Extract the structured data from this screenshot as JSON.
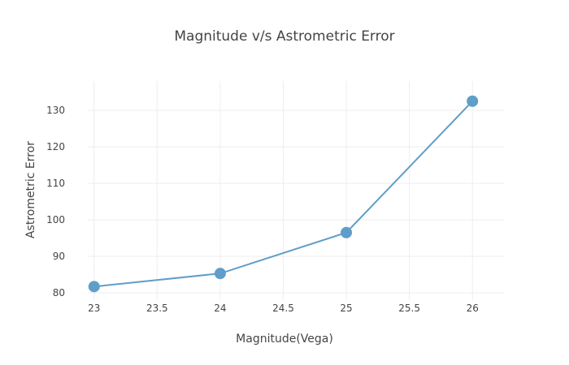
{
  "chart_data": {
    "type": "line",
    "title": "Magnitude v/s Astrometric Error",
    "xlabel": "Magnitude(Vega)",
    "ylabel": "Astrometric Error",
    "xlim": [
      22.95,
      26.25
    ],
    "ylim": [
      78,
      138
    ],
    "x_ticks": [
      23,
      23.5,
      24,
      24.5,
      25,
      25.5,
      26
    ],
    "x_tick_labels": [
      "23",
      "23.5",
      "24",
      "24.5",
      "25",
      "25.5",
      "26"
    ],
    "y_ticks": [
      80,
      90,
      100,
      110,
      120,
      130
    ],
    "y_tick_labels": [
      "80",
      "90",
      "100",
      "110",
      "120",
      "130"
    ],
    "grid": true,
    "legend": false,
    "series": [
      {
        "x": [
          23,
          24,
          25,
          26
        ],
        "y": [
          81.7,
          85.3,
          96.5,
          132.5
        ],
        "color": "#5f9ec8",
        "mode": "lines+markers"
      }
    ]
  }
}
